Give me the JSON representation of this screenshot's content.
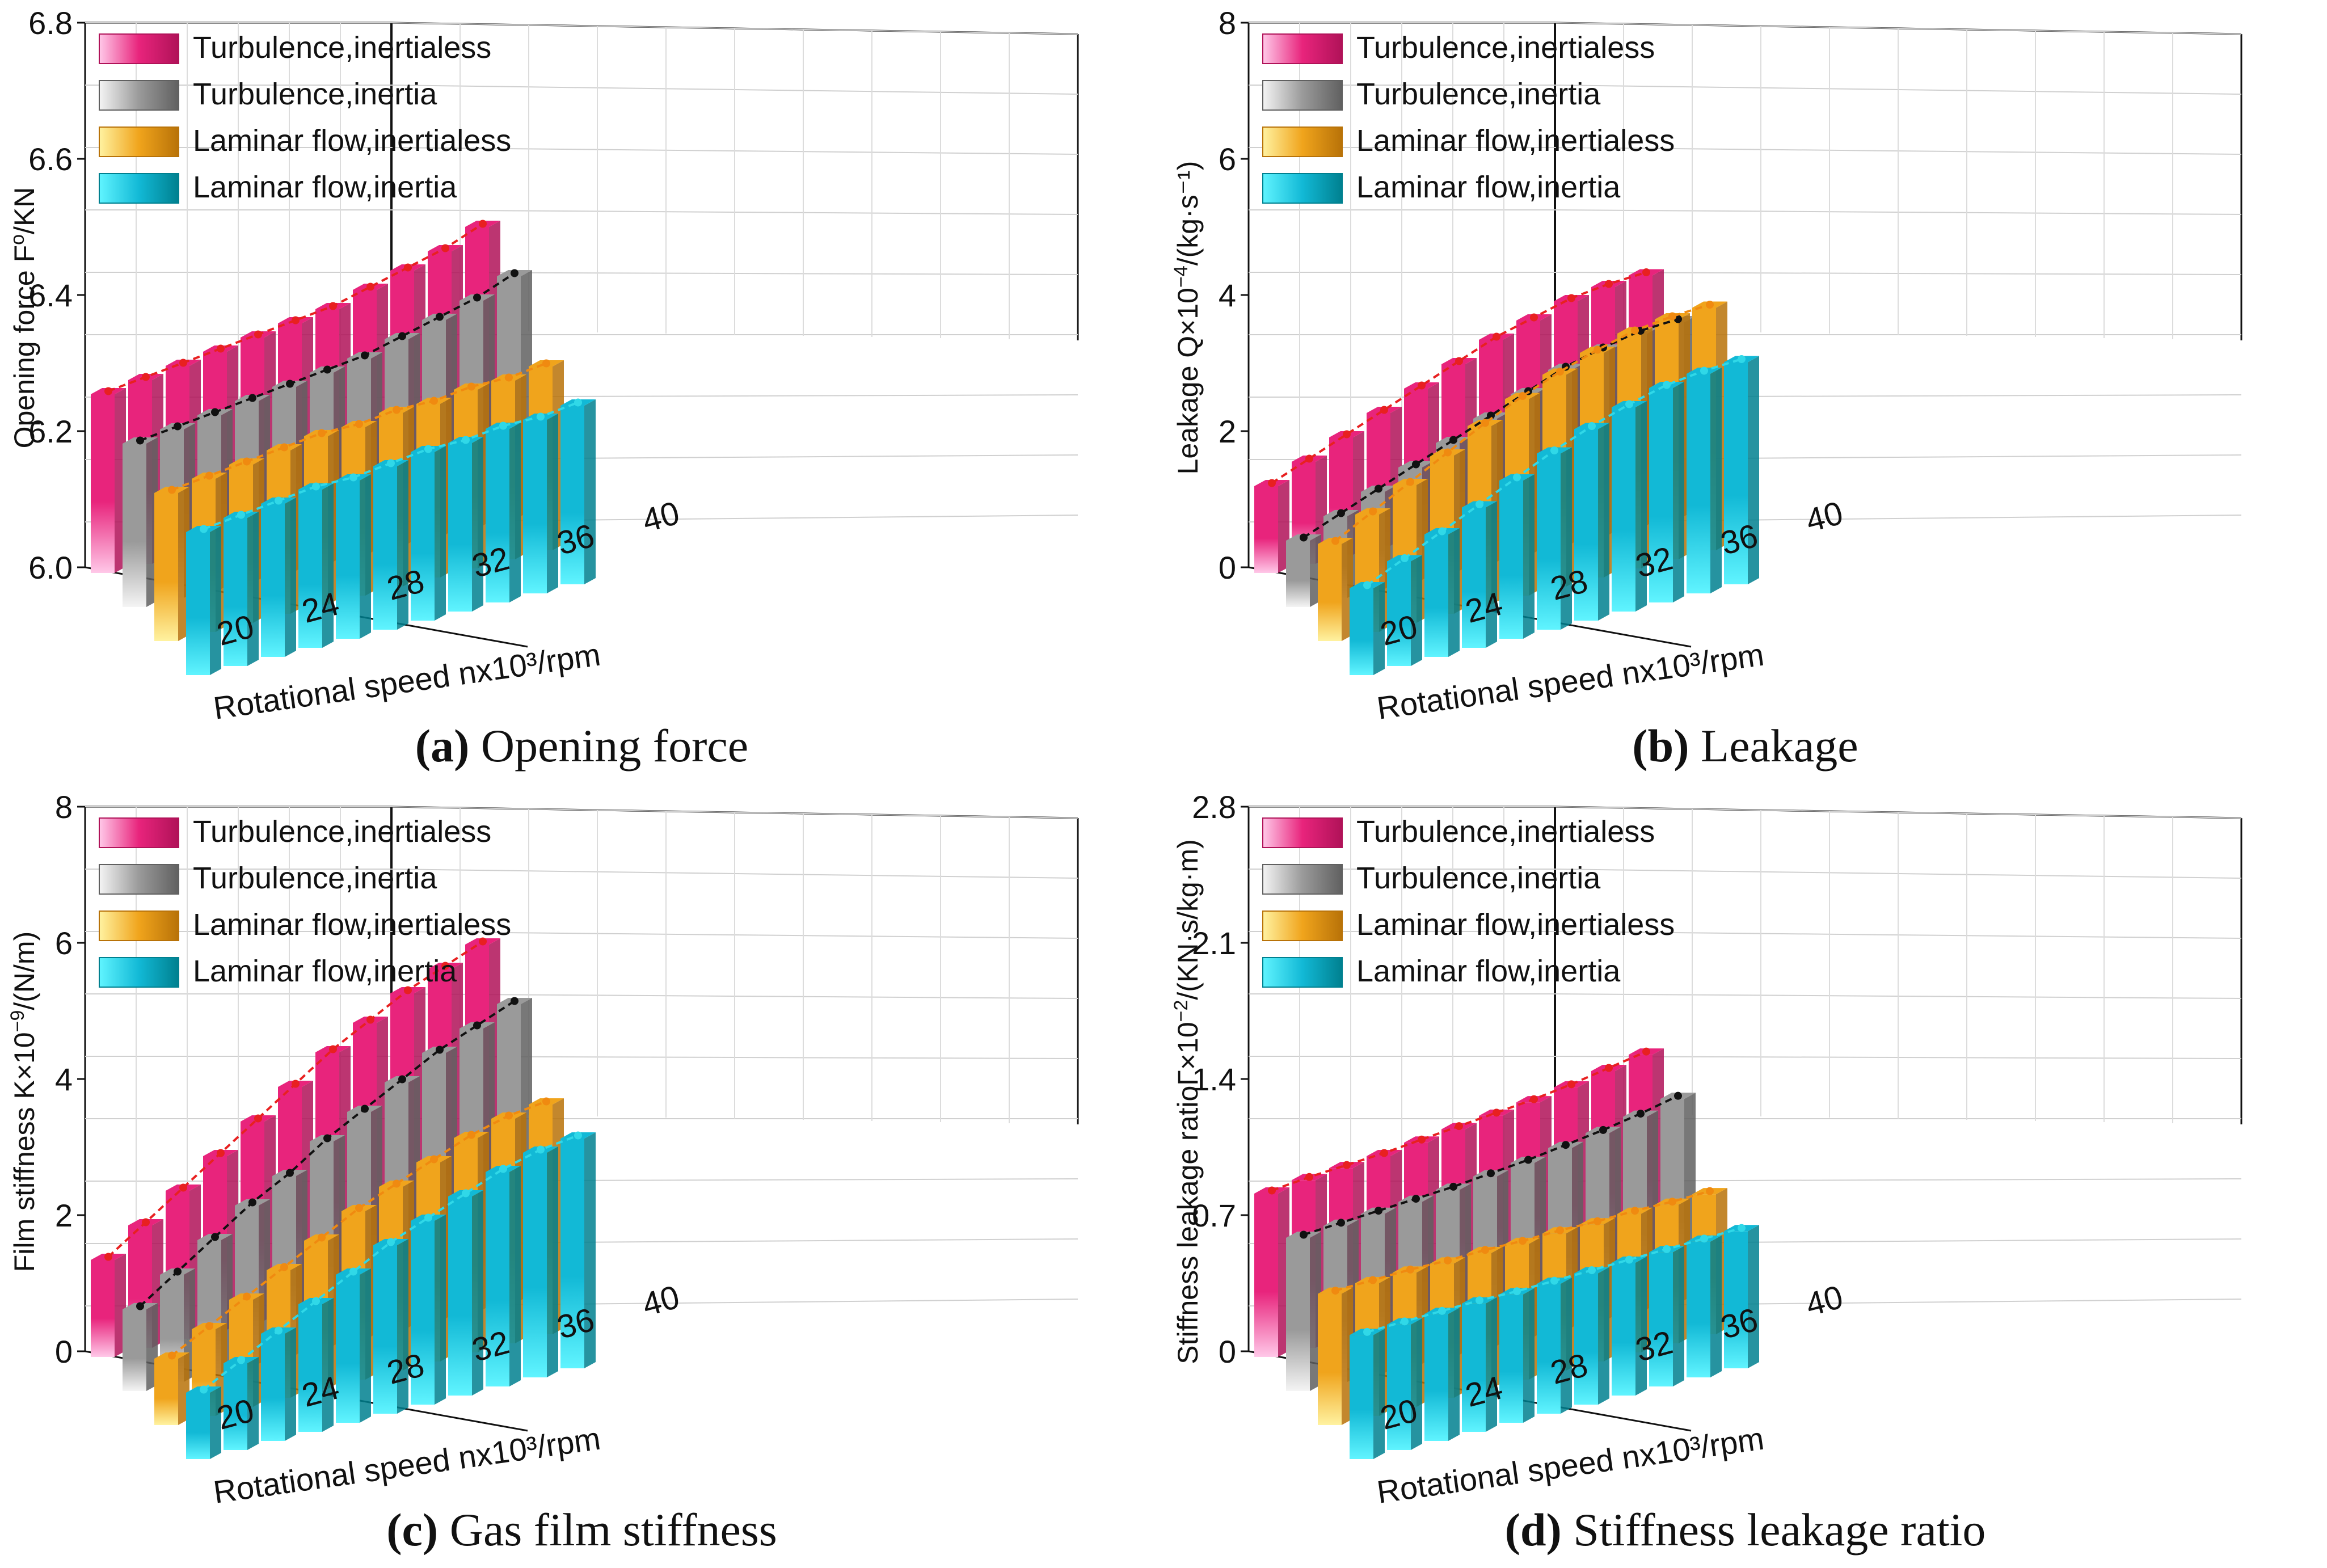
{
  "legend": [
    "Turbulence,inertialess",
    "Turbulence,inertia",
    "Laminar flow,inertialess",
    "Laminar flow,inertia"
  ],
  "colors": {
    "turb_inertialess": "#e8247c",
    "turb_inertia": "#9a9a9a",
    "lam_inertialess": "#f0a41c",
    "lam_inertia": "#12b9d6",
    "trend_red": "#e82020",
    "trend_black": "#111111",
    "trend_orange": "#f08a10",
    "trend_cyan": "#30d8e8"
  },
  "chart_data": [
    {
      "type": "bar",
      "panel": "a",
      "caption_label": "(a)",
      "caption_text": " Opening force",
      "title": "(a) Opening force",
      "ylabel_main": "Opening force F",
      "ylabel_sub": "o",
      "ylabel_unit": "/KN",
      "xlabel": "Rotational speed nx10³/rpm",
      "ylim": [
        6.0,
        6.8
      ],
      "yticks": [
        "6.0",
        "6.2",
        "6.4",
        "6.6",
        "6.8"
      ],
      "xtick_labels": [
        "20",
        "24",
        "28",
        "32",
        "36",
        "40"
      ],
      "categories": [
        20,
        22,
        24,
        26,
        28,
        30,
        32,
        34,
        36,
        38,
        40
      ],
      "series": [
        {
          "name": "Turbulence,inertialess",
          "values": [
            6.35,
            6.36,
            6.37,
            6.38,
            6.39,
            6.4,
            6.41,
            6.43,
            6.45,
            6.47,
            6.5
          ]
        },
        {
          "name": "Turbulence,inertia",
          "values": [
            6.32,
            6.33,
            6.34,
            6.35,
            6.36,
            6.37,
            6.38,
            6.4,
            6.42,
            6.44,
            6.47
          ]
        },
        {
          "name": "Laminar flow,inertialess",
          "values": [
            6.29,
            6.3,
            6.31,
            6.32,
            6.33,
            6.33,
            6.34,
            6.34,
            6.35,
            6.35,
            6.36
          ]
        },
        {
          "name": "Laminar flow,inertia",
          "values": [
            6.28,
            6.29,
            6.3,
            6.31,
            6.31,
            6.32,
            6.33,
            6.33,
            6.34,
            6.34,
            6.35
          ]
        }
      ]
    },
    {
      "type": "bar",
      "panel": "b",
      "caption_label": "(b)",
      "caption_text": " Leakage",
      "title": "(b) Leakage",
      "ylabel_main": "Leakage Q×10",
      "ylabel_sub": "−4",
      "ylabel_unit": "/(kg·s⁻¹)",
      "xlabel": "Rotational speed nx10³/rpm",
      "ylim": [
        0,
        8
      ],
      "yticks": [
        "0",
        "2",
        "4",
        "6",
        "8"
      ],
      "xtick_labels": [
        "20",
        "24",
        "28",
        "32",
        "36",
        "40"
      ],
      "categories": [
        20,
        22,
        24,
        26,
        28,
        30,
        32,
        34,
        36,
        38,
        40
      ],
      "series": [
        {
          "name": "Turbulence,inertialess",
          "values": [
            1.7,
            2.0,
            2.3,
            2.6,
            2.9,
            3.2,
            3.5,
            3.7,
            3.9,
            4.0,
            4.05
          ]
        },
        {
          "name": "Turbulence,inertia",
          "values": [
            1.3,
            1.6,
            1.9,
            2.2,
            2.5,
            2.8,
            3.1,
            3.4,
            3.6,
            3.75,
            3.8
          ]
        },
        {
          "name": "Laminar flow,inertialess",
          "values": [
            1.9,
            2.3,
            2.7,
            3.1,
            3.5,
            3.85,
            4.15,
            4.4,
            4.6,
            4.7,
            4.75
          ]
        },
        {
          "name": "Laminar flow,inertia",
          "values": [
            1.7,
            2.05,
            2.4,
            2.75,
            3.1,
            3.45,
            3.75,
            4.0,
            4.2,
            4.3,
            4.35
          ]
        }
      ]
    },
    {
      "type": "bar",
      "panel": "c",
      "caption_label": "(c)",
      "caption_text": " Gas film stiffness",
      "title": "(c) Gas film stiffness",
      "ylabel_main": "Film stiffness K×10",
      "ylabel_sub": "−9",
      "ylabel_unit": "/(N/m)",
      "xlabel": "Rotational speed nx10³/rpm",
      "ylim": [
        0,
        8
      ],
      "yticks": [
        "0",
        "2",
        "4",
        "6",
        "8"
      ],
      "xtick_labels": [
        "20",
        "24",
        "28",
        "32",
        "36",
        "40"
      ],
      "categories": [
        20,
        22,
        24,
        26,
        28,
        30,
        32,
        34,
        36,
        38,
        40
      ],
      "series": [
        {
          "name": "Turbulence,inertialess",
          "values": [
            1.9,
            2.4,
            2.9,
            3.4,
            3.9,
            4.4,
            4.9,
            5.3,
            5.7,
            6.0,
            6.3
          ]
        },
        {
          "name": "Turbulence,inertia",
          "values": [
            1.6,
            2.1,
            2.6,
            3.1,
            3.5,
            4.0,
            4.4,
            4.8,
            5.2,
            5.5,
            5.8
          ]
        },
        {
          "name": "Laminar flow,inertialess",
          "values": [
            1.3,
            1.7,
            2.1,
            2.5,
            2.9,
            3.3,
            3.6,
            3.9,
            4.2,
            4.4,
            4.5
          ]
        },
        {
          "name": "Laminar flow,inertia",
          "values": [
            1.3,
            1.7,
            2.1,
            2.5,
            2.9,
            3.3,
            3.6,
            3.9,
            4.2,
            4.4,
            4.5
          ]
        }
      ]
    },
    {
      "type": "bar",
      "panel": "d",
      "caption_label": "(d)",
      "caption_text": " Stiffness leakage ratio",
      "title": "(d) Stiffness leakage ratio",
      "ylabel_main": "Stiffness leakage ratioΓ×10",
      "ylabel_sub": "−2",
      "ylabel_unit": "/(KN·s/kg·m)",
      "xlabel": "Rotational speed nx10³/rpm",
      "ylim": [
        0,
        2.8
      ],
      "yticks": [
        "0",
        "0.7",
        "1.4",
        "2.1",
        "2.8"
      ],
      "xtick_labels": [
        "20",
        "24",
        "28",
        "32",
        "36",
        "40"
      ],
      "categories": [
        20,
        22,
        24,
        26,
        28,
        30,
        32,
        34,
        36,
        38,
        40
      ],
      "series": [
        {
          "name": "Turbulence,inertialess",
          "values": [
            1.12,
            1.15,
            1.17,
            1.19,
            1.22,
            1.25,
            1.28,
            1.31,
            1.35,
            1.4,
            1.45
          ]
        },
        {
          "name": "Turbulence,inertia",
          "values": [
            1.05,
            1.07,
            1.09,
            1.11,
            1.13,
            1.16,
            1.19,
            1.23,
            1.27,
            1.32,
            1.38
          ]
        },
        {
          "name": "Laminar flow,inertialess",
          "values": [
            0.9,
            0.91,
            0.92,
            0.92,
            0.93,
            0.93,
            0.94,
            0.94,
            0.95,
            0.95,
            0.96
          ]
        },
        {
          "name": "Laminar flow,inertia",
          "values": [
            0.85,
            0.86,
            0.87,
            0.88,
            0.88,
            0.89,
            0.9,
            0.91,
            0.92,
            0.93,
            0.94
          ]
        }
      ]
    }
  ]
}
